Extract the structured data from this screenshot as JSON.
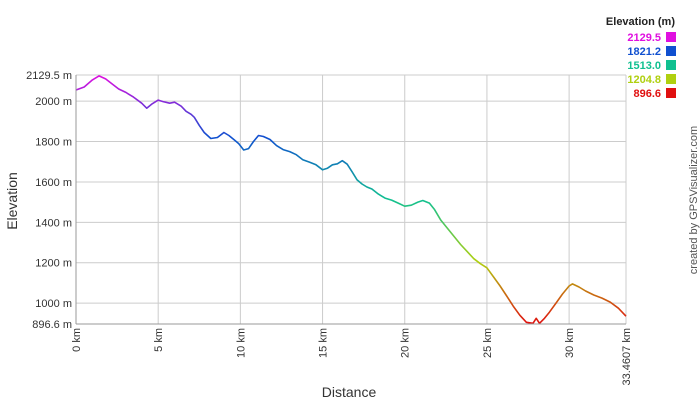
{
  "chart_data": {
    "type": "line",
    "xlabel": "Distance",
    "ylabel": "Elevation",
    "xlim": [
      0,
      33.4607
    ],
    "ylim": [
      896.6,
      2129.5
    ],
    "x_ticks": [
      {
        "value": 0,
        "label": "0 km"
      },
      {
        "value": 5,
        "label": "5 km"
      },
      {
        "value": 10,
        "label": "10 km"
      },
      {
        "value": 15,
        "label": "15 km"
      },
      {
        "value": 20,
        "label": "20 km"
      },
      {
        "value": 25,
        "label": "25 km"
      },
      {
        "value": 30,
        "label": "30 km"
      },
      {
        "value": 33.4607,
        "label": "33.4607 km"
      }
    ],
    "y_ticks": [
      {
        "value": 896.6,
        "label": "896.6 m"
      },
      {
        "value": 1000,
        "label": "1000 m"
      },
      {
        "value": 1200,
        "label": "1200 m"
      },
      {
        "value": 1400,
        "label": "1400 m"
      },
      {
        "value": 1600,
        "label": "1600 m"
      },
      {
        "value": 1800,
        "label": "1800 m"
      },
      {
        "value": 2000,
        "label": "2000 m"
      },
      {
        "value": 2129.5,
        "label": "2129.5 m"
      }
    ],
    "grid": true,
    "legend": {
      "title": "Elevation (m)",
      "placement": "top-right",
      "entries": [
        {
          "label": "2129.5",
          "color": "#e010e0"
        },
        {
          "label": "1821.2",
          "color": "#1050d0"
        },
        {
          "label": "1513.0",
          "color": "#10c090"
        },
        {
          "label": "1204.8",
          "color": "#b0d010"
        },
        {
          "label": "896.6",
          "color": "#e01010"
        }
      ]
    },
    "series": [
      {
        "x": [
          0,
          0.5,
          1.0,
          1.4,
          1.8,
          2.2,
          2.6,
          3.0,
          3.5,
          4.0,
          4.3,
          4.6,
          5.0,
          5.3,
          5.7,
          6.0,
          6.4,
          6.7,
          7.0,
          7.2,
          7.5,
          7.8,
          8.2,
          8.6,
          9.0,
          9.3,
          9.6,
          9.9,
          10.2,
          10.5,
          10.8,
          11.1,
          11.4,
          11.8,
          12.2,
          12.6,
          13.0,
          13.4,
          13.8,
          14.2,
          14.6,
          15.0,
          15.3,
          15.6,
          15.9,
          16.2,
          16.5,
          16.8,
          17.1,
          17.4,
          17.7,
          18.0,
          18.4,
          18.8,
          19.2,
          19.6,
          20.0,
          20.4,
          20.8,
          21.1,
          21.5,
          21.8,
          22.2,
          22.6,
          23.0,
          23.4,
          23.8,
          24.2,
          24.6,
          25.0,
          25.4,
          25.8,
          26.2,
          26.6,
          27.0,
          27.4,
          27.8,
          28.0,
          28.2,
          28.5,
          28.8,
          29.2,
          29.6,
          30.0,
          30.2,
          30.6,
          31.0,
          31.5,
          32.0,
          32.5,
          33.0,
          33.4607
        ],
        "y": [
          2055,
          2070,
          2105,
          2125,
          2110,
          2085,
          2060,
          2045,
          2020,
          1990,
          1965,
          1985,
          2005,
          1998,
          1990,
          1995,
          1975,
          1950,
          1935,
          1920,
          1880,
          1845,
          1815,
          1820,
          1845,
          1830,
          1810,
          1790,
          1758,
          1765,
          1800,
          1830,
          1825,
          1810,
          1780,
          1760,
          1750,
          1735,
          1710,
          1698,
          1685,
          1660,
          1668,
          1685,
          1690,
          1705,
          1688,
          1650,
          1610,
          1590,
          1575,
          1565,
          1540,
          1520,
          1510,
          1495,
          1480,
          1485,
          1500,
          1508,
          1495,
          1465,
          1410,
          1370,
          1330,
          1290,
          1255,
          1220,
          1195,
          1175,
          1130,
          1085,
          1035,
          985,
          940,
          905,
          900,
          925,
          900,
          925,
          955,
          1000,
          1045,
          1085,
          1095,
          1080,
          1060,
          1040,
          1025,
          1005,
          975,
          935
        ]
      }
    ]
  },
  "credit": "created by GPSVisualizer.com"
}
